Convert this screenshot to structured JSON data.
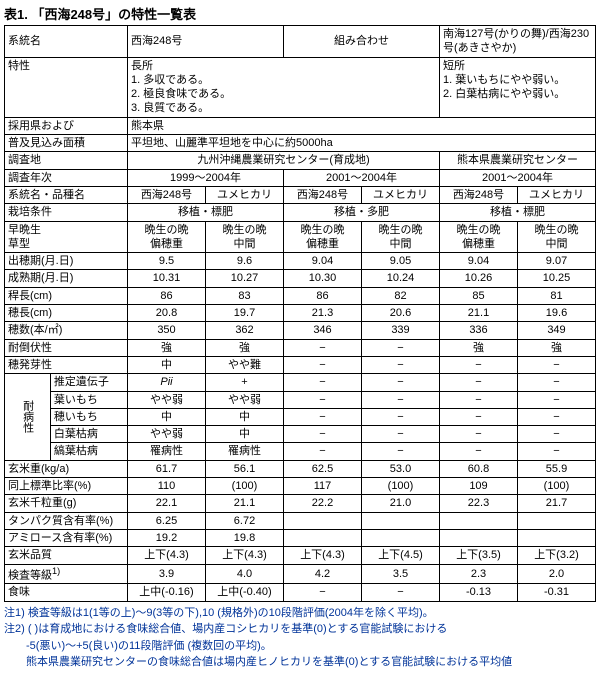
{
  "title": "表1. 「西海248号」の特性一覧表",
  "h": {
    "line": "系統名",
    "tok": "特性",
    "saiyo": "採用県および",
    "fukyu": "普及見込み面積",
    "chousa": "調査地",
    "nenji": "調査年次",
    "hinshu": "系統名・品種名",
    "joken": "栽培条件",
    "sobon": "早晩生",
    "kusagata": "草型",
    "shussui": "出穂期(月.日)",
    "seijuku": "成熟期(月.日)",
    "kancho": "稈長(cm)",
    "hocho": "穂長(cm)",
    "hoszu": "穂数(本/㎡)",
    "taitou": "耐倒伏性",
    "hohatsu": "穂発芽性",
    "idenshi": "推定遺伝子",
    "byo": "耐病性",
    "haimochi": "葉いもち",
    "homochi": "穂いもち",
    "hakuyou": "白葉枯病",
    "shimayake": "縞葉枯病",
    "genmai": "玄米重(kg/a)",
    "doujo": "同上標準比率(%)",
    "senryu": "玄米千粒重(g)",
    "tanpaku": "タンパク質含有率(%)",
    "amylose": "アミロース含有率(%)",
    "hinshitsu": "玄米品質",
    "kensa": "検査等級",
    "shokumi": "食味",
    "kensa_sup": "1)"
  },
  "keitou": {
    "main": "西海248号",
    "kumiawase": "組み合わせ",
    "oya": "南海127号(かりの舞)/西海230号(あきさやか)"
  },
  "tokusei": {
    "chousho": "長所",
    "c1": "1. 多収である。",
    "c2": "2. 極良食味である。",
    "c3": "3. 良質である。",
    "tansho": "短所",
    "t1": "1. 葉いもちにやや弱い。",
    "t2": "2. 白葉枯病にやや弱い。"
  },
  "saiyo": {
    "ken": "熊本県",
    "menseki": "平坦地、山麗準平坦地を中心に約5000ha"
  },
  "chousachi": {
    "a": "九州沖縄農業研究センター(育成地)",
    "b": "熊本県農業研究センター"
  },
  "nenji": {
    "a": "1999～2004年",
    "b": "2001～2004年",
    "c": "2001～2004年"
  },
  "joken": {
    "a": "移植・標肥",
    "b": "移植・多肥",
    "c": "移植・標肥"
  },
  "cols": {
    "sai": "西海248号",
    "yume": "ユメヒカリ"
  },
  "sobon": {
    "a": "晩生の晩",
    "b": "晩生の晩",
    "c": "晩生の晩",
    "d": "晩生の晩",
    "e": "晩生の晩",
    "f": "晩生の晩"
  },
  "kusagata": {
    "a": "偏穂重",
    "b": "中間",
    "c": "偏穂重",
    "d": "中間",
    "e": "偏穂重",
    "f": "中間"
  },
  "shussui": {
    "a": "9.5",
    "b": "9.6",
    "c": "9.04",
    "d": "9.05",
    "e": "9.04",
    "f": "9.07"
  },
  "seijuku": {
    "a": "10.31",
    "b": "10.27",
    "c": "10.30",
    "d": "10.24",
    "e": "10.26",
    "f": "10.25"
  },
  "kancho": {
    "a": "86",
    "b": "83",
    "c": "86",
    "d": "82",
    "e": "85",
    "f": "81"
  },
  "hocho": {
    "a": "20.8",
    "b": "19.7",
    "c": "21.3",
    "d": "20.6",
    "e": "21.1",
    "f": "19.6"
  },
  "hoszu": {
    "a": "350",
    "b": "362",
    "c": "346",
    "d": "339",
    "e": "336",
    "f": "349"
  },
  "taitou": {
    "a": "強",
    "b": "強",
    "c": "−",
    "d": "−",
    "e": "強",
    "f": "強"
  },
  "hohatsu": {
    "a": "中",
    "b": "やや難",
    "c": "−",
    "d": "−",
    "e": "−",
    "f": "−"
  },
  "idenshi": {
    "a": "Pii",
    "b": "+",
    "c": "−",
    "d": "−",
    "e": "−",
    "f": "−"
  },
  "haimochi": {
    "a": "やや弱",
    "b": "やや弱",
    "c": "−",
    "d": "−",
    "e": "−",
    "f": "−"
  },
  "homochi": {
    "a": "中",
    "b": "中",
    "c": "−",
    "d": "−",
    "e": "−",
    "f": "−"
  },
  "hakuyou": {
    "a": "やや弱",
    "b": "中",
    "c": "−",
    "d": "−",
    "e": "−",
    "f": "−"
  },
  "shimayake": {
    "a": "罹病性",
    "b": "罹病性",
    "c": "−",
    "d": "−",
    "e": "−",
    "f": "−"
  },
  "genmai": {
    "a": "61.7",
    "b": "56.1",
    "c": "62.5",
    "d": "53.0",
    "e": "60.8",
    "f": "55.9"
  },
  "doujo": {
    "a": "110",
    "b": "(100)",
    "c": "117",
    "d": "(100)",
    "e": "109",
    "f": "(100)"
  },
  "senryu": {
    "a": "22.1",
    "b": "21.1",
    "c": "22.2",
    "d": "21.0",
    "e": "22.3",
    "f": "21.7"
  },
  "tanpaku": {
    "a": "6.25",
    "b": "6.72",
    "c": "",
    "d": "",
    "e": "",
    "f": ""
  },
  "amylose": {
    "a": "19.2",
    "b": "19.8",
    "c": "",
    "d": "",
    "e": "",
    "f": ""
  },
  "hinshitsu": {
    "a": "上下(4.3)",
    "b": "上下(4.3)",
    "c": "上下(4.3)",
    "d": "上下(4.5)",
    "e": "上下(3.5)",
    "f": "上下(3.2)"
  },
  "kensa": {
    "a": "3.9",
    "b": "4.0",
    "c": "4.2",
    "d": "3.5",
    "e": "2.3",
    "f": "2.0"
  },
  "shokumi": {
    "a": "上中(-0.16)",
    "b": "上中(-0.40)",
    "c": "−",
    "d": "−",
    "e": "-0.13",
    "f": "-0.31"
  },
  "notes": {
    "n1": "注1) 検査等級は1(1等の上)～9(3等の下),10 (規格外)の10段階評価(2004年を除く平均)。",
    "n2": "注2) ( )は育成地における食味総合値、場内産コシヒカリを基準(0)とする官能試験における",
    "n2b": "　　-5(悪い)～+5(良い)の11段階評価 (複数回の平均)。",
    "n3": "　　熊本県農業研究センターの食味総合値は場内産ヒノヒカリを基準(0)とする官能試験における平均値"
  }
}
